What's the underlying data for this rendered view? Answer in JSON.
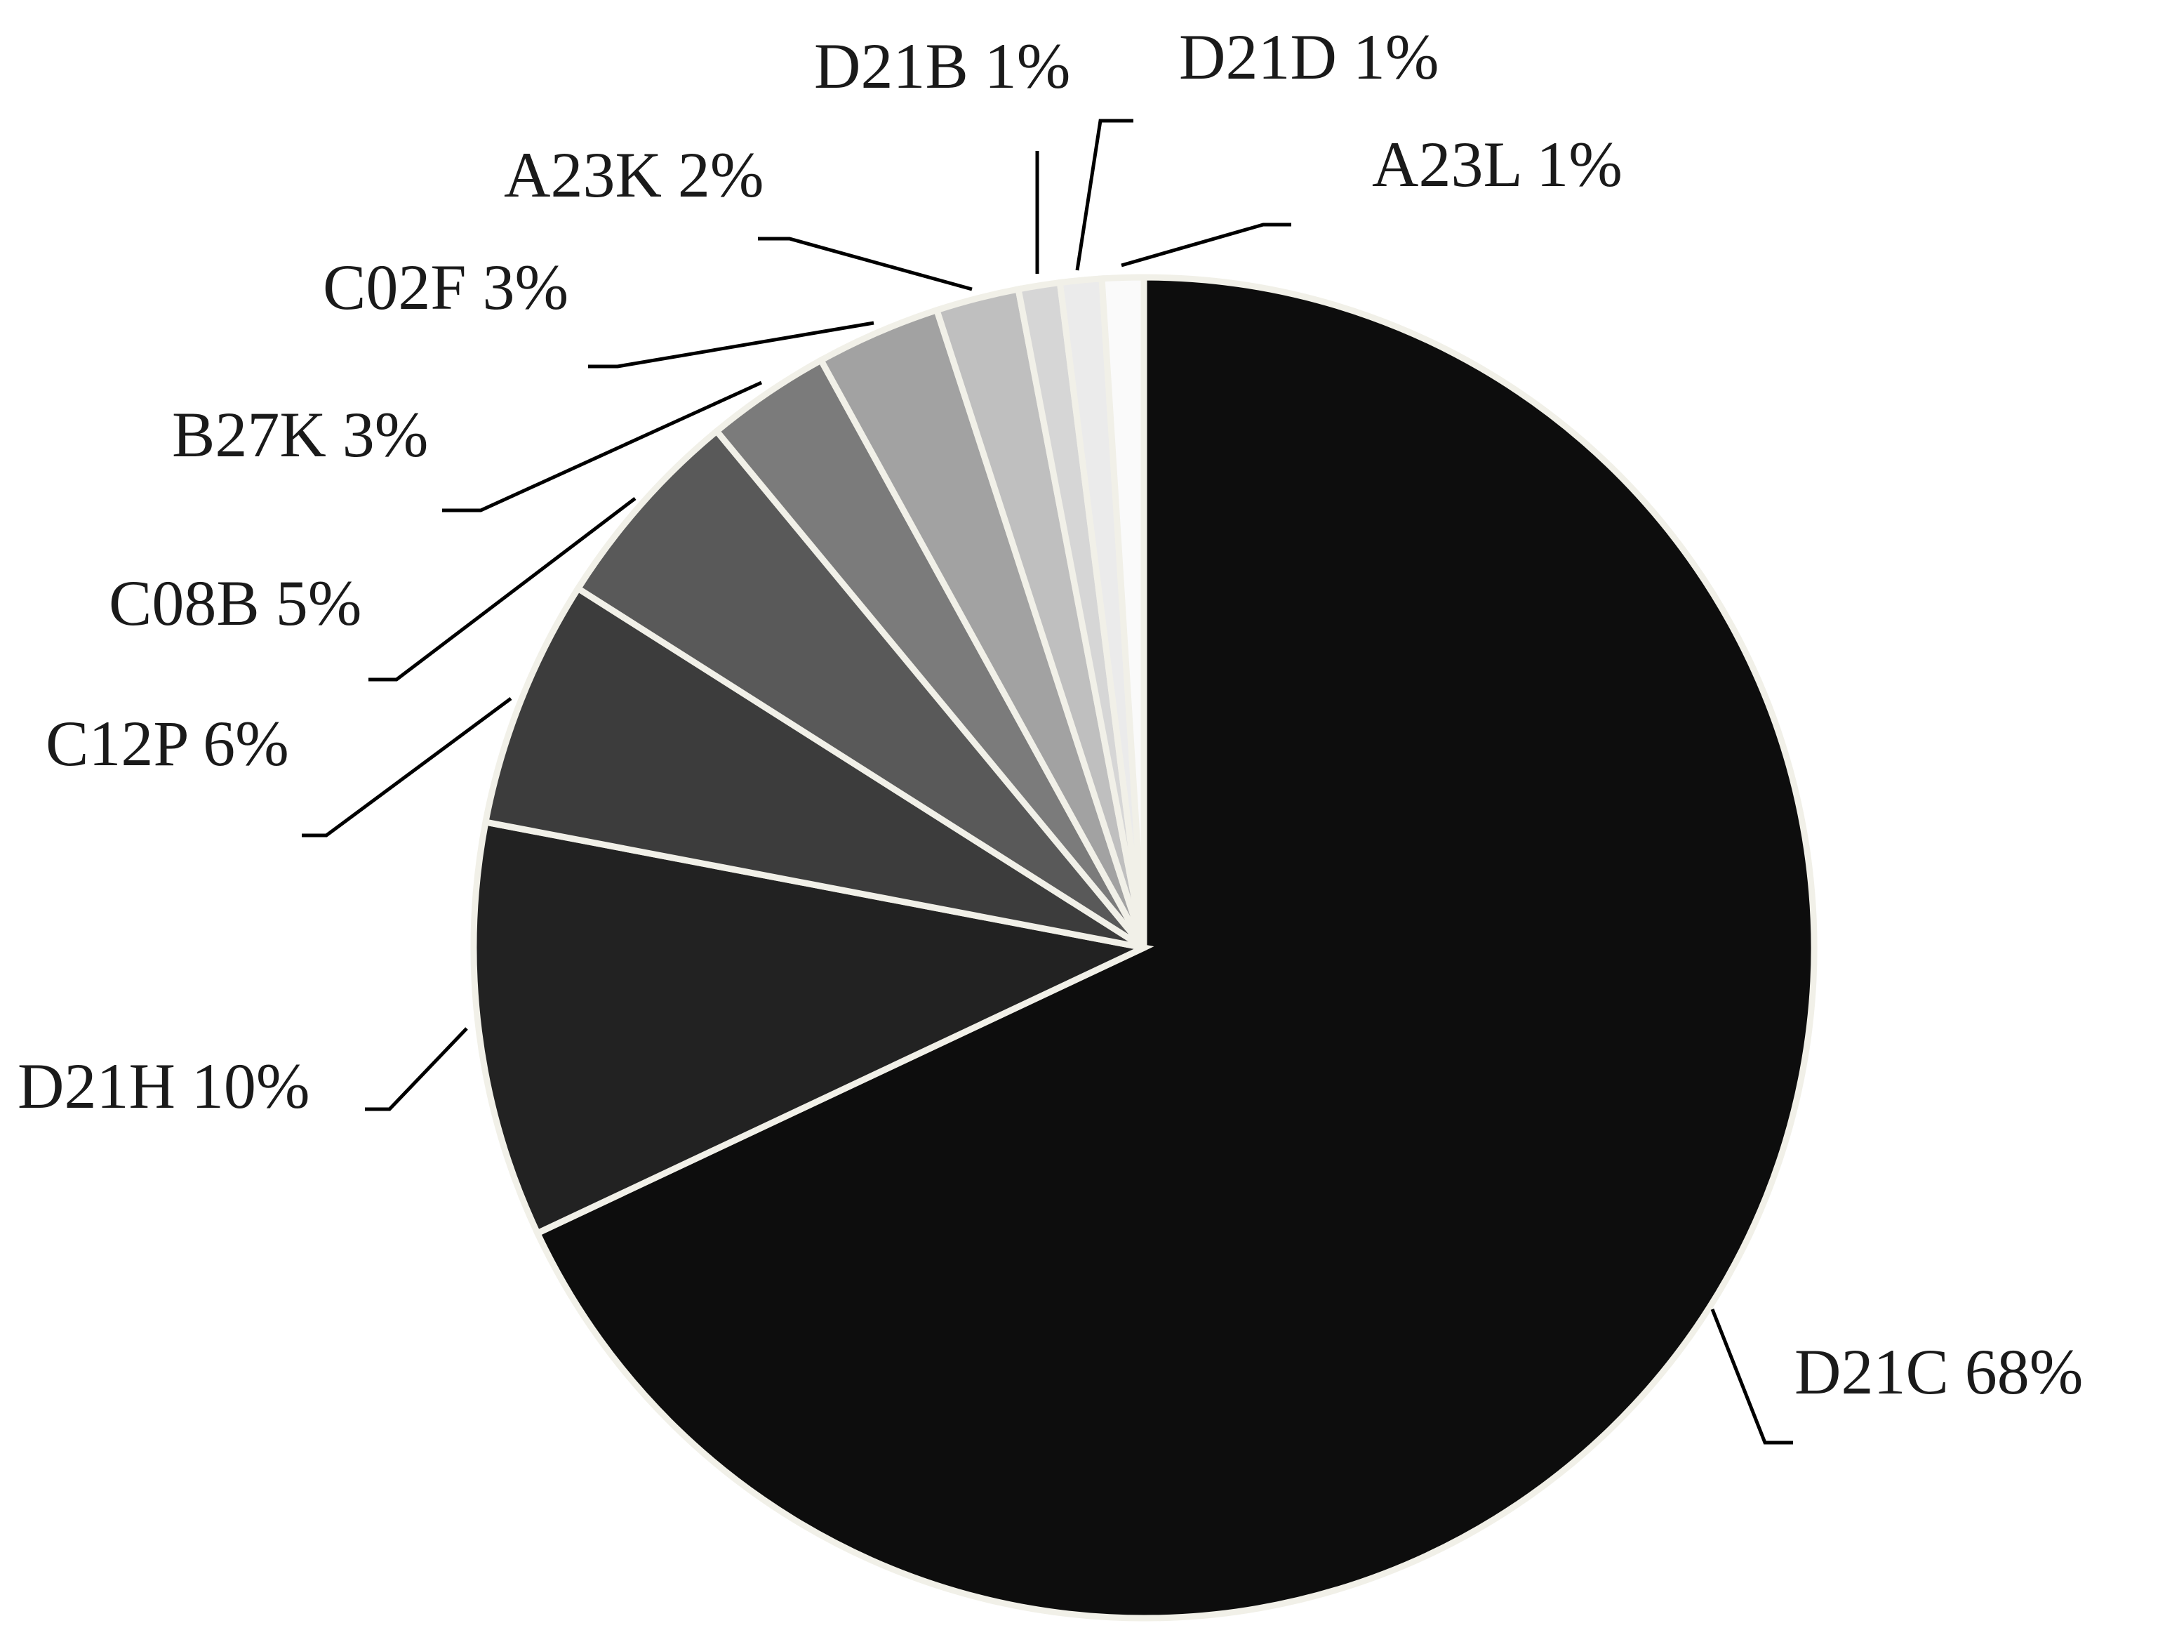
{
  "chart_data": {
    "type": "pie",
    "start": "12 o'clock",
    "direction": "clockwise",
    "slices": [
      {
        "label": "D21C",
        "value": 68,
        "text": "D21C 68%",
        "color": "#0d0d0d"
      },
      {
        "label": "D21H",
        "value": 10,
        "text": "D21H 10%",
        "color": "#222222"
      },
      {
        "label": "C12P",
        "value": 6,
        "text": "C12P 6%",
        "color": "#3c3c3c"
      },
      {
        "label": "C08B",
        "value": 5,
        "text": "C08B 5%",
        "color": "#595959"
      },
      {
        "label": "B27K",
        "value": 3,
        "text": "B27K 3%",
        "color": "#7b7b7b"
      },
      {
        "label": "C02F",
        "value": 3,
        "text": "C02F 3%",
        "color": "#a2a2a2"
      },
      {
        "label": "A23K",
        "value": 2,
        "text": "A23K 2%",
        "color": "#bfbfbf"
      },
      {
        "label": "D21B",
        "value": 1,
        "text": "D21B 1%",
        "color": "#d6d6d6"
      },
      {
        "label": "D21D",
        "value": 1,
        "text": "D21D 1%",
        "color": "#ebebeb"
      },
      {
        "label": "A23L",
        "value": 1,
        "text": "A23L 1%",
        "color": "#fafafa"
      }
    ]
  }
}
